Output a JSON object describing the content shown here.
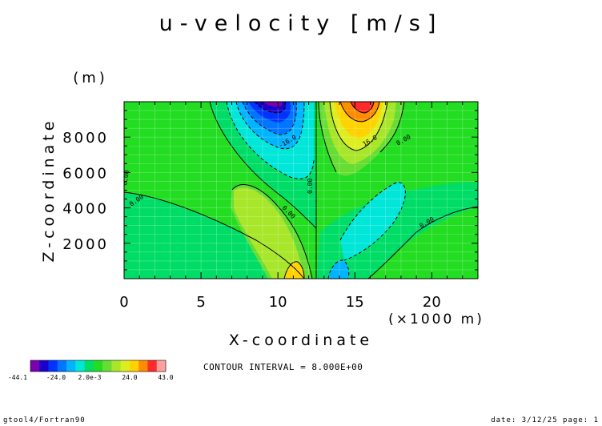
{
  "chart_data": {
    "type": "heatmap",
    "title": "u-velocity [m/s]",
    "xlabel": "X-coordinate",
    "xunit": "(×1000 m)",
    "ylabel": "Z-coordinate",
    "yunit": "(m)",
    "xlim": [
      0,
      23
    ],
    "ylim": [
      0,
      10000
    ],
    "x_ticks": [
      "0",
      "5",
      "10",
      "15",
      "20"
    ],
    "y_ticks": [
      "2000",
      "4000",
      "6000",
      "8000"
    ],
    "grid": true,
    "contour_interval_label": "CONTOUR INTERVAL = 8.000E+00",
    "contour_labels": [
      "0.00",
      "0.00",
      "0.00",
      "0.00",
      "0.00",
      "-16.0",
      "16.0",
      "0.00"
    ],
    "colorbar": {
      "colors": [
        "#7b00b0",
        "#1a00c8",
        "#0033ff",
        "#0075ff",
        "#00b4ff",
        "#00e6d8",
        "#00dd66",
        "#22dd22",
        "#66dd33",
        "#a8e62a",
        "#dcee20",
        "#ffd200",
        "#ff8c00",
        "#ff2a2a",
        "#ffa0a0"
      ],
      "labels": [
        "-44.1",
        "-24.0",
        "2.0e-3",
        "24.0",
        "43.0"
      ]
    },
    "features": [
      {
        "kind": "minimum",
        "x": 9.5,
        "z": 9500,
        "value": -44.1
      },
      {
        "kind": "maximum",
        "x": 15.8,
        "z": 9500,
        "value": 43.0
      }
    ]
  },
  "footer": {
    "left": "gtool4/Fortran90",
    "right": "date: 3/12/25 page: 1"
  }
}
